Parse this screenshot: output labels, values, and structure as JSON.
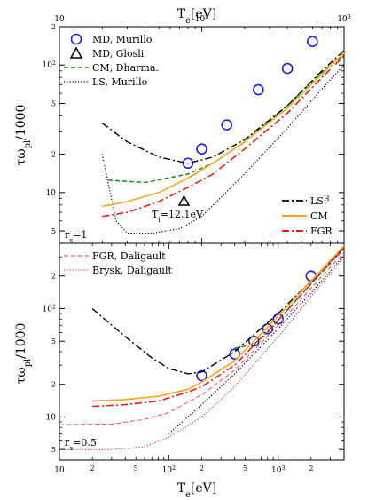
{
  "chart_data": [
    {
      "type": "line",
      "panel": "top",
      "xlabel": "Te[eV]",
      "ylabel": "τωpl/1000",
      "xscale": "log",
      "yscale": "log",
      "xlim": [
        10,
        1000
      ],
      "ylim": [
        4,
        200
      ],
      "x_ticks_major": [
        "10",
        "10²",
        "10³"
      ],
      "y_ticks": [
        "5",
        "10",
        "2",
        "5",
        "10²",
        "2"
      ],
      "annotation_rs": "rs=1",
      "annotation_ti": "Ti=12.1eV",
      "legend_topleft": [
        "MD, Murillo",
        "MD, Glosli",
        "CM, Dharma.",
        "LS, Murillo"
      ],
      "legend_bottomright": [
        "LSH",
        "CM",
        "FGR"
      ],
      "series": [
        {
          "name": "MD, Murillo",
          "style": "circle-marker",
          "color": "#1f1fe0",
          "x": [
            80,
            100,
            150,
            250,
            400,
            600
          ],
          "y": [
            17,
            22,
            34,
            64,
            94,
            153
          ]
        },
        {
          "name": "MD, Glosli",
          "style": "triangle-marker",
          "color": "#000000",
          "x": [
            75
          ],
          "y": [
            8.5
          ]
        },
        {
          "name": "CM, Dharma.",
          "style": "green-dashed",
          "color": "#1a8a1a",
          "x": [
            22,
            40,
            80,
            120,
            200,
            400,
            700,
            1000
          ],
          "y": [
            12.5,
            12,
            14,
            17,
            25,
            48,
            88,
            120
          ]
        },
        {
          "name": "LS, Murillo",
          "style": "black-dotted",
          "color": "#000000",
          "x": [
            20,
            25,
            30,
            45,
            70,
            100,
            200,
            400,
            700,
            1000
          ],
          "y": [
            20,
            6,
            4.8,
            4.8,
            5.2,
            6.5,
            14,
            32,
            65,
            100
          ]
        },
        {
          "name": "LSH",
          "style": "dash-dot-black",
          "color": "#000000",
          "x": [
            20,
            30,
            50,
            80,
            120,
            200,
            400,
            700,
            1000
          ],
          "y": [
            35,
            25,
            19,
            17,
            19,
            26,
            48,
            90,
            130
          ]
        },
        {
          "name": "CM",
          "style": "orange-solid",
          "color": "#f5a623",
          "x": [
            20,
            30,
            50,
            80,
            120,
            200,
            400,
            700,
            1000
          ],
          "y": [
            7.8,
            8.5,
            10,
            13,
            17,
            25,
            46,
            85,
            125
          ]
        },
        {
          "name": "FGR",
          "style": "red-dash-dot",
          "color": "#e02020",
          "x": [
            20,
            30,
            50,
            80,
            120,
            200,
            400,
            700,
            1000
          ],
          "y": [
            6.5,
            7,
            8.5,
            11,
            14,
            22,
            42,
            80,
            118
          ]
        }
      ]
    },
    {
      "type": "line",
      "panel": "bottom",
      "xlabel": "Te[eV]",
      "ylabel": "τωpl/1000",
      "xscale": "log",
      "yscale": "log",
      "xlim": [
        10,
        4000
      ],
      "ylim": [
        4,
        400
      ],
      "x_ticks_major": [
        "10",
        "10²",
        "10³"
      ],
      "x_ticks_minor_labels": [
        "2",
        "5",
        "2",
        "5",
        "2",
        "5",
        "2"
      ],
      "y_ticks": [
        "5",
        "10",
        "2",
        "5",
        "10²",
        "2"
      ],
      "annotation_rs": "rs=0.5",
      "legend_topleft": [
        "FGR, Daligault",
        "Brysk, Daligault"
      ],
      "series": [
        {
          "name": "MD",
          "style": "circle-marker",
          "color": "#1f1fe0",
          "x": [
            200,
            400,
            600,
            800,
            1000,
            2000
          ],
          "y": [
            24,
            38,
            50,
            65,
            80,
            200
          ]
        },
        {
          "name": "CM, Dharma.",
          "style": "green-dashed",
          "color": "#1a8a1a",
          "x": [
            400,
            600,
            800,
            1000,
            2000,
            4000
          ],
          "y": [
            43,
            47,
            60,
            78,
            170,
            360
          ]
        },
        {
          "name": "LSH",
          "style": "dash-dot-black",
          "color": "#000000",
          "x": [
            20,
            40,
            70,
            100,
            150,
            200,
            400,
            1000,
            2000,
            4000
          ],
          "y": [
            100,
            55,
            35,
            28,
            25,
            26,
            40,
            90,
            180,
            370
          ]
        },
        {
          "name": "CM",
          "style": "orange-solid",
          "color": "#f5a623",
          "x": [
            20,
            40,
            80,
            150,
            200,
            400,
            1000,
            2000,
            4000
          ],
          "y": [
            14,
            14.5,
            15.5,
            18,
            21,
            33,
            85,
            180,
            380
          ]
        },
        {
          "name": "FGR",
          "style": "red-dash-dot",
          "color": "#e02020",
          "x": [
            20,
            40,
            80,
            150,
            200,
            400,
            1000,
            2000,
            4000
          ],
          "y": [
            12.5,
            13,
            14,
            17,
            19,
            30,
            78,
            170,
            360
          ]
        },
        {
          "name": "FGR, Daligault",
          "style": "red-thin-dashed",
          "color": "#e04040",
          "x": [
            10,
            30,
            60,
            100,
            200,
            400,
            1000,
            2000,
            4000
          ],
          "y": [
            8.5,
            8.6,
            9.5,
            11,
            16,
            27,
            70,
            155,
            330
          ]
        },
        {
          "name": "Brysk, Daligault",
          "style": "red-dotted",
          "color": "#c02020",
          "x": [
            10,
            30,
            60,
            100,
            200,
            400,
            1000,
            2000,
            4000
          ],
          "y": [
            5,
            5,
            5.3,
            6.5,
            10,
            19,
            55,
            130,
            300
          ]
        },
        {
          "name": "LS, Murillo",
          "style": "black-dotted",
          "color": "#000000",
          "x": [
            100,
            200,
            400,
            1000,
            2000,
            4000
          ],
          "y": [
            7,
            13,
            25,
            65,
            140,
            310
          ]
        }
      ]
    }
  ],
  "top_axis_title": "Te[eV]",
  "bottom_axis_title": "Te[eV]"
}
